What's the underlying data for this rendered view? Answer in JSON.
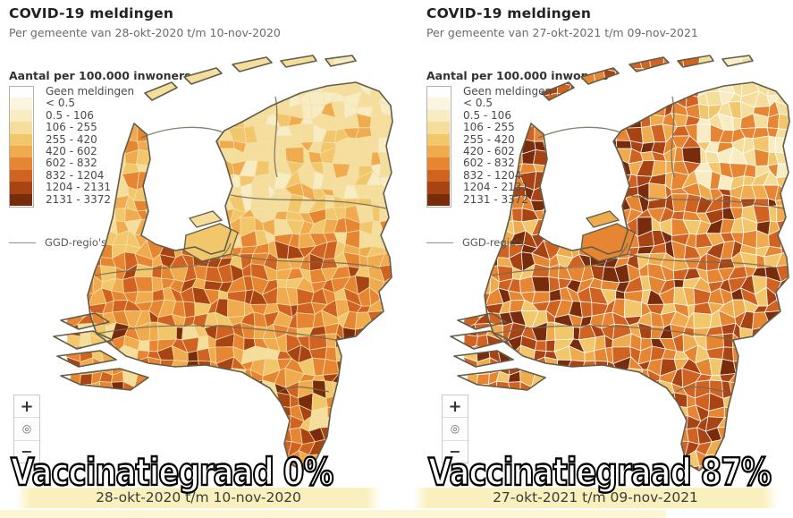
{
  "palette": [
    "#FFFFFF",
    "#FBF4DF",
    "#F8ECC3",
    "#F5DE9B",
    "#F2C76C",
    "#EFAB4E",
    "#E68633",
    "#D06322",
    "#A84414",
    "#782C0C"
  ],
  "legend": {
    "title": "Aantal per 100.000 inwoners",
    "items": [
      {
        "label": "Geen meldingen",
        "palette_index": 0
      },
      {
        "label": "< 0.5",
        "palette_index": 1
      },
      {
        "label": "0.5 - 106",
        "palette_index": 2
      },
      {
        "label": "106 - 255",
        "palette_index": 3
      },
      {
        "label": "255 - 420",
        "palette_index": 4
      },
      {
        "label": "420 - 602",
        "palette_index": 5
      },
      {
        "label": "602 - 832",
        "palette_index": 6
      },
      {
        "label": "832 - 1204",
        "palette_index": 7
      },
      {
        "label": "1204 - 2131",
        "palette_index": 8
      },
      {
        "label": "2131 - 3372",
        "palette_index": 9
      }
    ],
    "ggd_label": "GGD-regio's"
  },
  "controls": {
    "zoom_in_label": "+",
    "reset_label": "◎",
    "zoom_out_label": "−"
  },
  "panels": [
    {
      "title": "COVID-19 meldingen",
      "subtitle": "Per gemeente van 28-okt-2020 t/m 10-nov-2020",
      "overlay": "Vaccinatiegraad 0%",
      "date_range": "28-okt-2020 t/m 10-nov-2020",
      "map": {
        "seed": 7,
        "border_color": "#F3E0AE",
        "zones": [
          {
            "maxY": 54,
            "weights": [
              2,
              3,
              3
            ]
          },
          {
            "maxY": 175,
            "minX": 135,
            "weights": [
              3,
              3,
              2,
              4,
              3,
              5
            ]
          },
          {
            "maxY": 215,
            "weights": [
              4,
              5,
              4,
              3,
              6
            ]
          },
          {
            "maxY": 310,
            "weights": [
              6,
              5,
              7,
              6,
              4,
              8,
              7,
              5
            ]
          },
          {
            "weights": [
              5,
              6,
              7,
              6,
              4,
              8,
              5,
              7,
              3,
              9
            ]
          }
        ],
        "flevoland_fills": [
          4,
          3
        ]
      }
    },
    {
      "title": "COVID-19 meldingen",
      "subtitle": "Per gemeente van 27-okt-2021 t/m 09-nov-2021",
      "overlay": "Vaccinatiegraad 87%",
      "date_range": "27-okt-2021 t/m 09-nov-2021",
      "map": {
        "seed": 13,
        "border_color": "#FFFFFF",
        "zones": [
          {
            "maxY": 54,
            "minX": 295,
            "weights": [
              2,
              3
            ]
          },
          {
            "maxY": 54,
            "weights": [
              7,
              8,
              6
            ]
          },
          {
            "maxY": 150,
            "minX": 290,
            "weights": [
              3,
              2,
              3,
              4,
              6
            ]
          },
          {
            "maxY": 175,
            "weights": [
              6,
              7,
              5,
              8,
              6,
              9
            ]
          },
          {
            "maxY": 310,
            "weights": [
              6,
              5,
              7,
              8,
              6,
              4,
              9,
              7
            ]
          },
          {
            "weights": [
              6,
              7,
              7,
              8,
              5,
              9,
              6,
              4,
              8
            ]
          }
        ],
        "flevoland_fills": [
          6,
          5
        ]
      }
    }
  ]
}
